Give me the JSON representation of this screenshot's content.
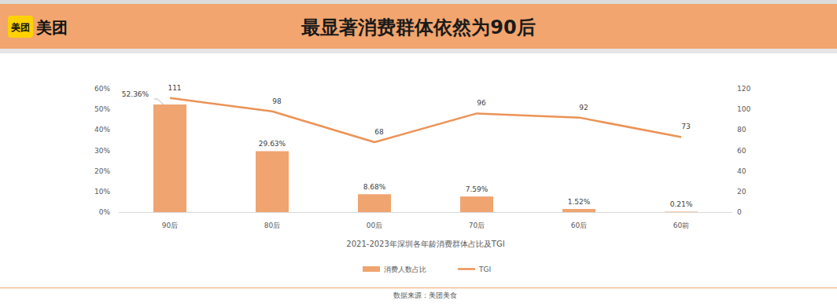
{
  "header": {
    "logo_mark": "美团",
    "logo_text": "美团"
  },
  "chart_data": {
    "type": "bar",
    "title": "最显著消费群体依然为90后",
    "x_label": "2021-2023年深圳各年龄消费群体占比及TGI",
    "source": "数据来源：美团美食",
    "categories": [
      "90后",
      "80后",
      "00后",
      "70后",
      "60后",
      "60前"
    ],
    "series": [
      {
        "name": "消费人数占比",
        "type": "bar",
        "color": "#F0A470",
        "values": [
          52.36,
          29.63,
          8.68,
          7.59,
          1.52,
          0.21
        ],
        "value_labels": [
          "52.36%",
          "29.63%",
          "8.68%",
          "7.59%",
          "1.52%",
          "0.21%"
        ]
      },
      {
        "name": "TGI",
        "type": "line",
        "color": "#EC9255",
        "axis": "y2",
        "values": [
          111,
          98,
          68,
          96,
          92,
          73
        ]
      }
    ],
    "ylim": [
      0,
      60
    ],
    "yticks": [
      {
        "value": 0,
        "label": "0%"
      },
      {
        "value": 10,
        "label": "10%"
      },
      {
        "value": 20,
        "label": "20%"
      },
      {
        "value": 30,
        "label": "30%"
      },
      {
        "value": 40,
        "label": "40%"
      },
      {
        "value": 50,
        "label": "50%"
      },
      {
        "value": 60,
        "label": "60%"
      }
    ],
    "y2lim": [
      0,
      120
    ],
    "y2ticks": [
      0,
      20,
      40,
      60,
      80,
      100,
      120
    ],
    "grid": false,
    "legend": "bottom",
    "data_labels": true
  }
}
